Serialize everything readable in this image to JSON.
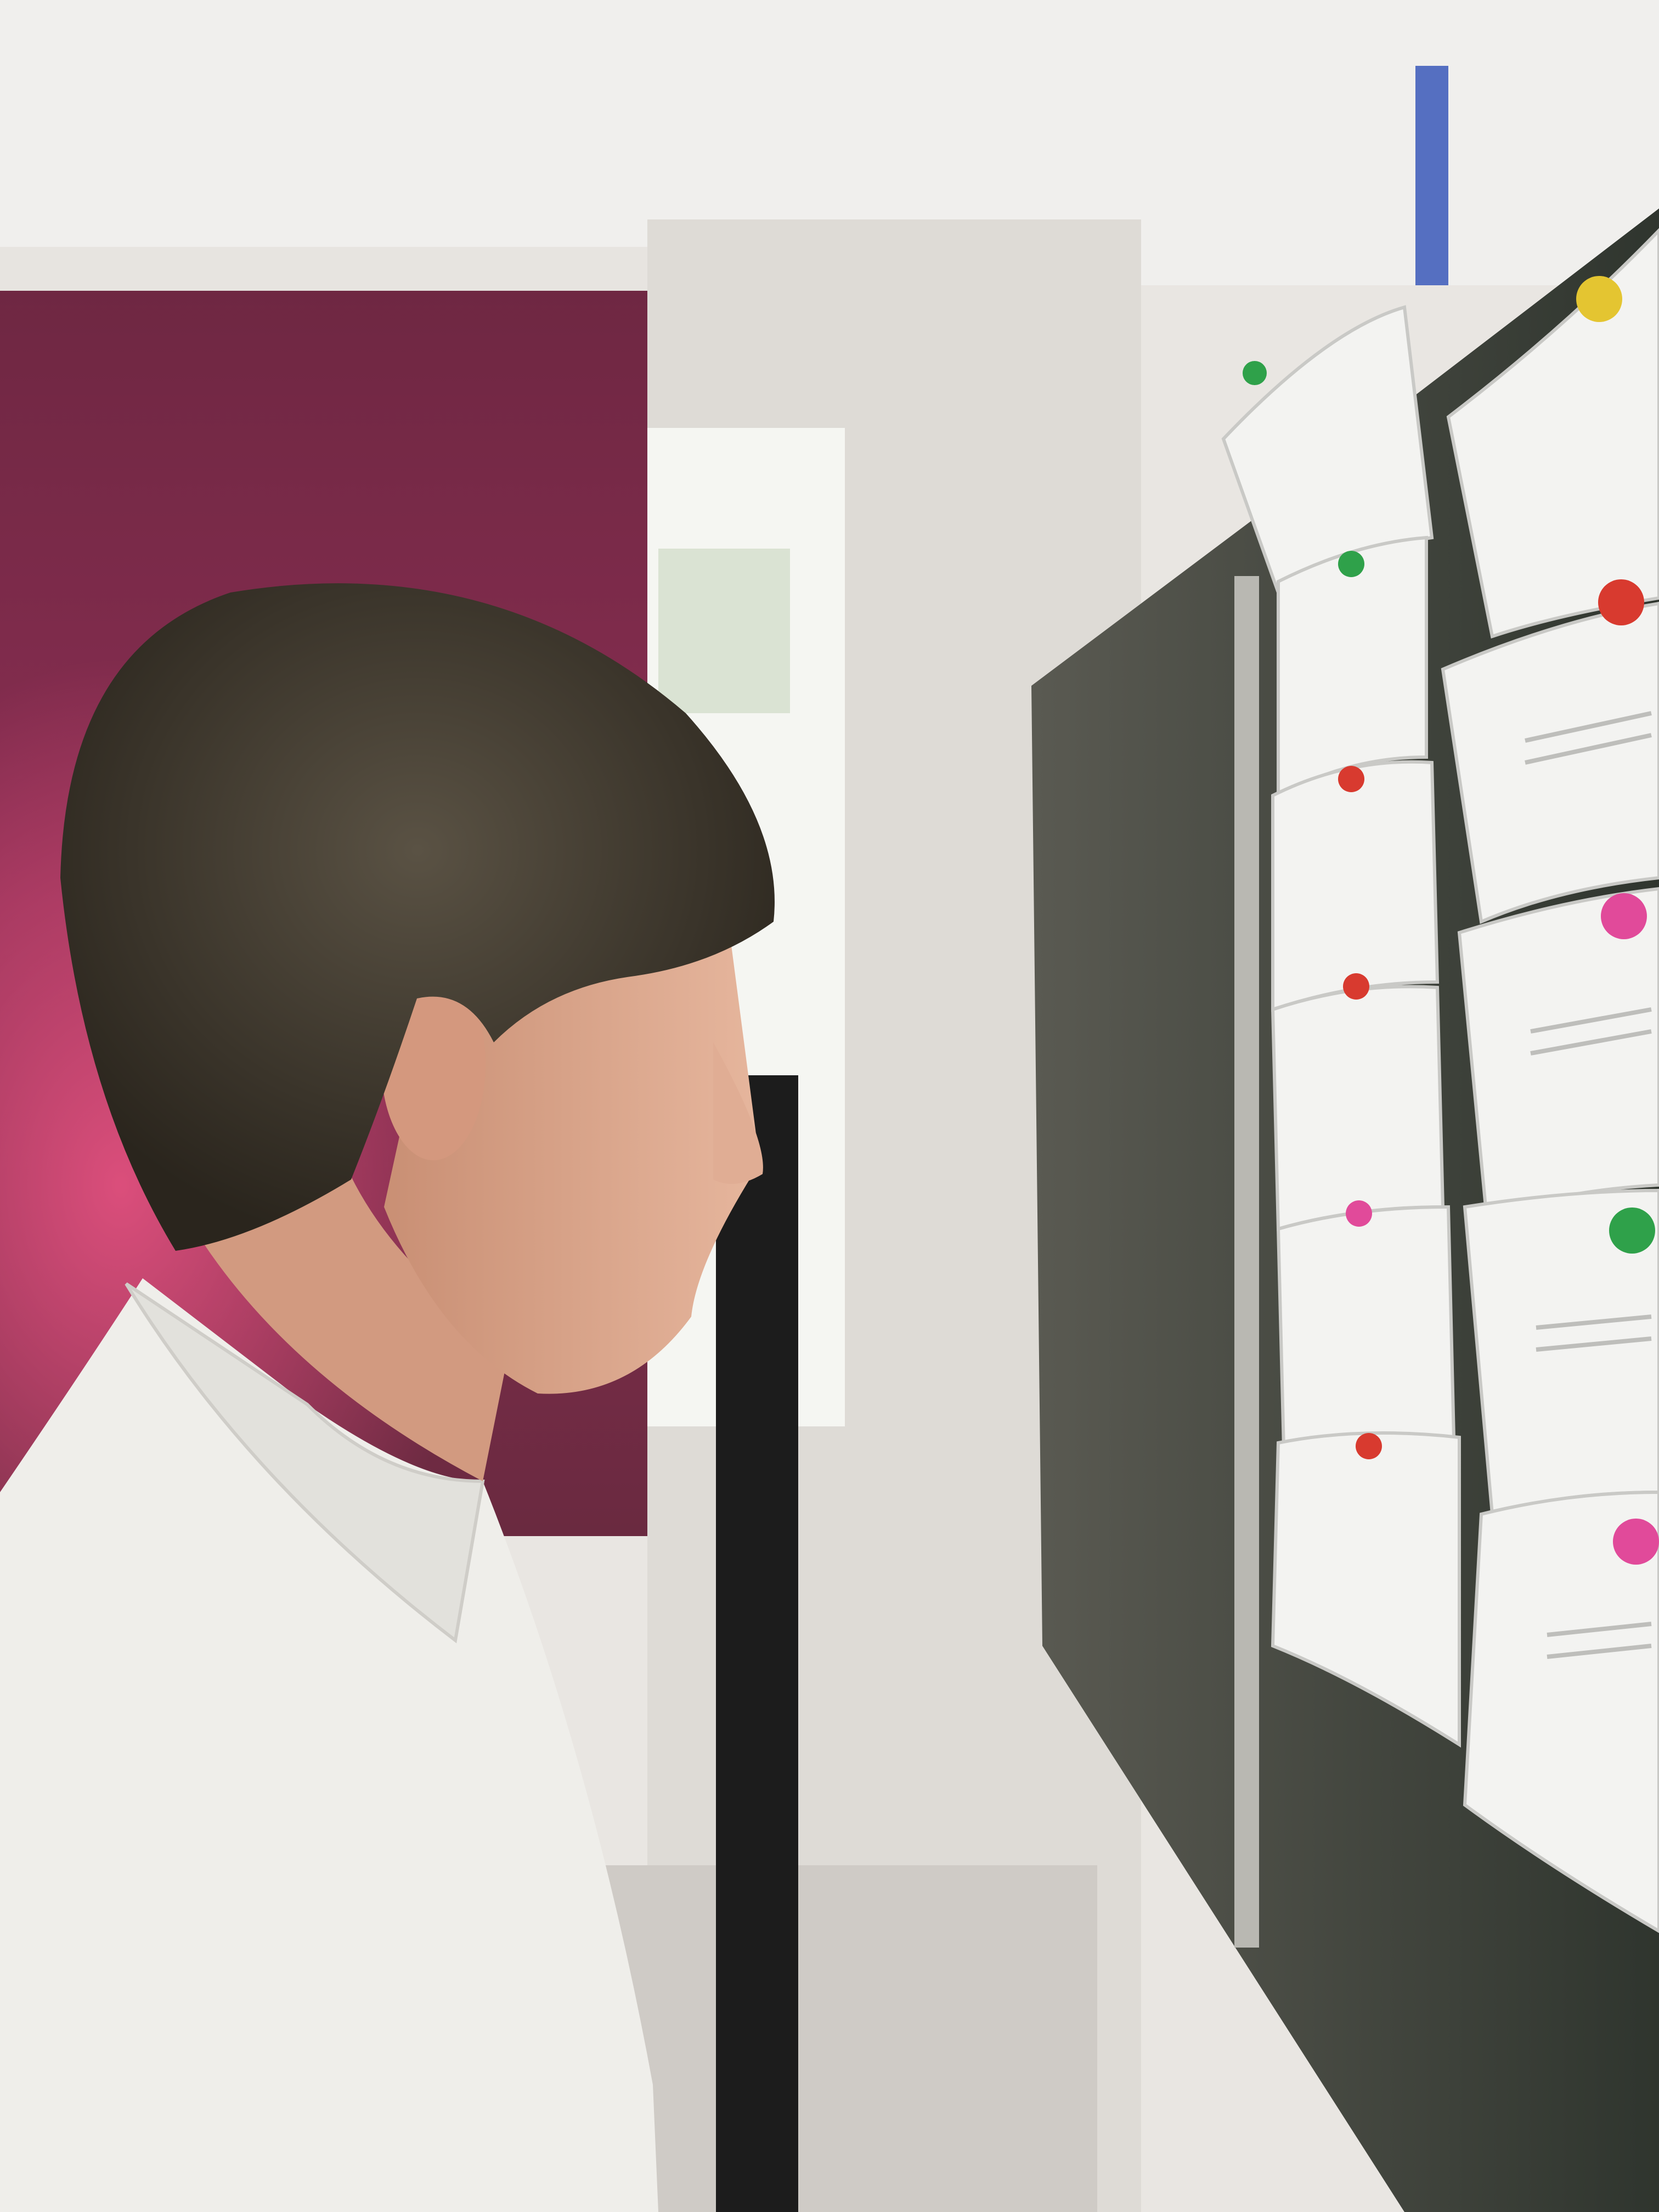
{
  "scene": {
    "colors": {
      "ceiling": "#f0efed",
      "curtain": "#7a2c48",
      "curtain_glow": "#d04a78",
      "window": "#f4f6f2",
      "wall": "#dcdad6",
      "board": "#3a3f38",
      "paper": "#f3f3f1",
      "hair": "#3c362c",
      "skin": "#d9a58c",
      "shirt": "#efeeea",
      "pole": "#1c1c1c"
    },
    "pins": [
      {
        "color": "#e4c531"
      },
      {
        "color": "#d83a2f"
      },
      {
        "color": "#e14a9a"
      },
      {
        "color": "#2fa14a"
      },
      {
        "color": "#e14a9a"
      },
      {
        "color": "#2fa14a"
      },
      {
        "color": "#2fa14a"
      },
      {
        "color": "#d83a2f"
      },
      {
        "color": "#d83a2f"
      },
      {
        "color": "#e14a9a"
      },
      {
        "color": "#d83a2f"
      }
    ]
  }
}
